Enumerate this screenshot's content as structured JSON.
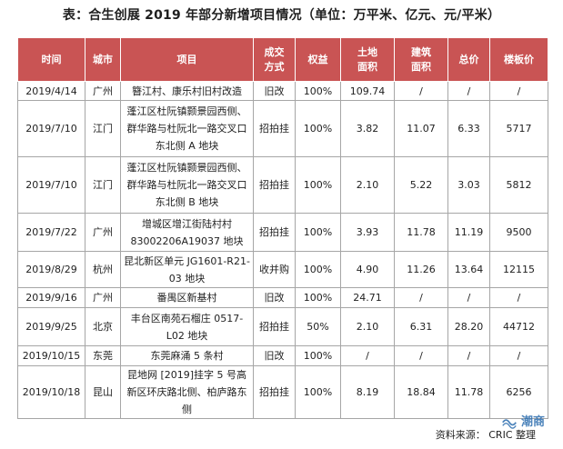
{
  "title": "表：合生创展 2019 年部分新增项目情况（单位：万平米、亿元、元/平米）",
  "headers": [
    "时间",
    "城市",
    "项目",
    "成交\n方式",
    "权益",
    "土地\n面积",
    "建筑\n面积",
    "总价",
    "楼板价"
  ],
  "rows": [
    {
      "date": "2019/4/14",
      "city": "广州",
      "project": "簪江村、康乐村旧村改造",
      "method": "旧改",
      "equity": "100%",
      "land": "109.74",
      "build": "/",
      "total": "/",
      "price": "/"
    },
    {
      "date": "2019/7/10",
      "city": "江门",
      "project": "蓬江区杜阮镇颢景园西侧、群华路与杜阮北一路交叉口东北侧 A 地块",
      "method": "招拍挂",
      "equity": "100%",
      "land": "3.82",
      "build": "11.07",
      "total": "6.33",
      "price": "5717"
    },
    {
      "date": "2019/7/10",
      "city": "江门",
      "project": "蓬江区杜阮镇颢景园西侧、群华路与杜阮北一路交叉口东北侧 B 地块",
      "method": "招拍挂",
      "equity": "100%",
      "land": "2.10",
      "build": "5.22",
      "total": "3.03",
      "price": "5812"
    },
    {
      "date": "2019/7/22",
      "city": "广州",
      "project": "增城区增江街陆村村 83002206A19037 地块",
      "method": "招拍挂",
      "equity": "100%",
      "land": "3.93",
      "build": "11.78",
      "total": "11.19",
      "price": "9500"
    },
    {
      "date": "2019/8/29",
      "city": "杭州",
      "project": "昆北新区单元 JG1601-R21-03 地块",
      "method": "收并购",
      "equity": "100%",
      "land": "4.90",
      "build": "11.26",
      "total": "13.64",
      "price": "12115"
    },
    {
      "date": "2019/9/16",
      "city": "广州",
      "project": "番禺区新基村",
      "method": "旧改",
      "equity": "100%",
      "land": "24.71",
      "build": "/",
      "total": "/",
      "price": "/"
    },
    {
      "date": "2019/9/25",
      "city": "北京",
      "project": "丰台区南苑石榴庄 0517-L02 地块",
      "method": "招拍挂",
      "equity": "50%",
      "land": "2.10",
      "build": "6.31",
      "total": "28.20",
      "price": "44712"
    },
    {
      "date": "2019/10/15",
      "city": "东莞",
      "project": "东莞麻涌 5 条村",
      "method": "旧改",
      "equity": "100%",
      "land": "/",
      "build": "/",
      "total": "/",
      "price": "/"
    },
    {
      "date": "2019/10/18",
      "city": "昆山",
      "project": "昆地网 [2019]挂字 5 号高新区环庆路北侧、柏庐路东侧",
      "method": "招拍挂",
      "equity": "100%",
      "land": "8.19",
      "build": "18.84",
      "total": "11.78",
      "price": "6256"
    }
  ],
  "footer": "资料来源： CRIC 整理",
  "watermark": "潮商",
  "colors": {
    "header_bg": "#c95454",
    "border": "#a6a6a6",
    "watermark": "#2e6fb0"
  }
}
